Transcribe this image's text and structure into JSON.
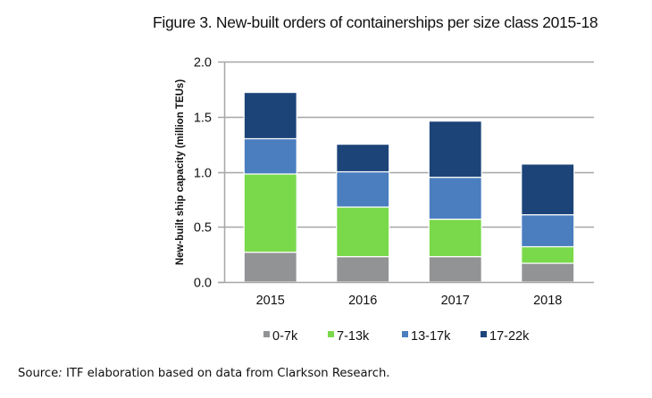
{
  "chart_data": {
    "type": "bar",
    "stacked": true,
    "title": "Figure 3. New-built orders of containerships per size class 2015-18",
    "xlabel": "",
    "ylabel": "New-built ship capacity (million TEUs)",
    "ylim": [
      0,
      2.0
    ],
    "yticks": [
      0.0,
      0.5,
      1.0,
      1.5,
      2.0
    ],
    "ytick_labels": [
      "0.0",
      "0.5",
      "1.0",
      "1.5",
      "2.0"
    ],
    "grid": true,
    "legend_position": "bottom",
    "categories": [
      "2015",
      "2016",
      "2017",
      "2018"
    ],
    "series": [
      {
        "name": "0-7k",
        "color": "#929395",
        "values": [
          0.27,
          0.23,
          0.23,
          0.17
        ]
      },
      {
        "name": "7-13k",
        "color": "#7ad94b",
        "values": [
          0.71,
          0.45,
          0.34,
          0.15
        ]
      },
      {
        "name": "13-17k",
        "color": "#4a7ebf",
        "values": [
          0.32,
          0.32,
          0.38,
          0.29
        ]
      },
      {
        "name": "17-22k",
        "color": "#1c4479",
        "values": [
          0.42,
          0.25,
          0.51,
          0.46
        ]
      }
    ],
    "totals": [
      1.72,
      1.25,
      1.46,
      1.07
    ]
  },
  "source": {
    "prefix": "Source",
    "colon": ":",
    "text": " ITF elaboration based on data from Clarkson Research."
  },
  "style": {
    "gridline_color": "#a6a6a6",
    "axis_color": "#a6a6a6"
  }
}
